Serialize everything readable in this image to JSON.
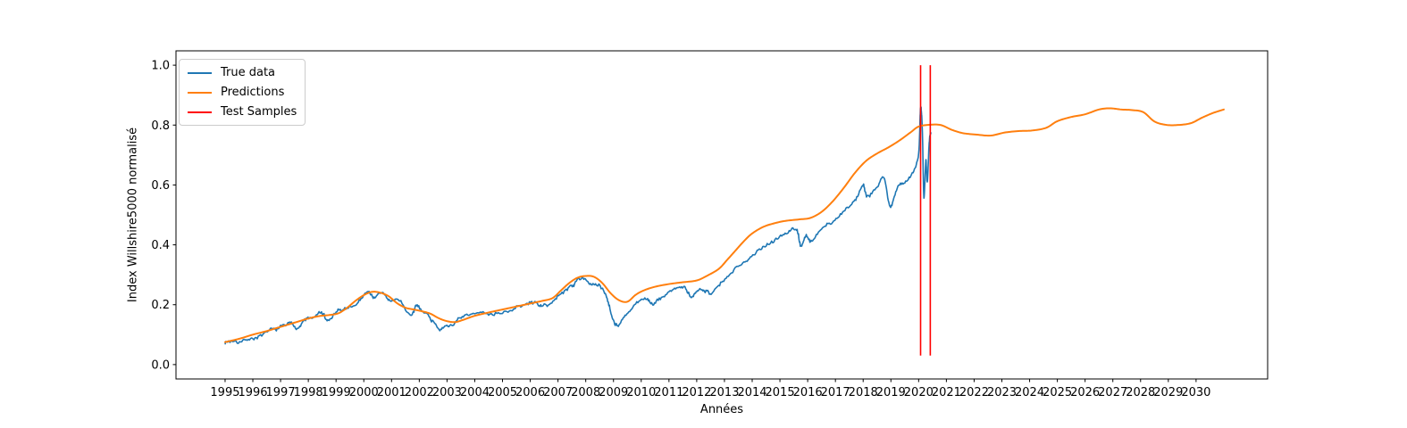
{
  "figure": {
    "background": "#ffffff"
  },
  "chart_data": {
    "type": "line",
    "title": "",
    "xlabel": "Années",
    "ylabel": "Index Willshire5000 normalisé",
    "grid": false,
    "xlim": [
      1993.23,
      2032.58
    ],
    "ylim": [
      -0.048,
      1.048
    ],
    "x_ticks": [
      "1995",
      "1996",
      "1997",
      "1998",
      "1999",
      "2000",
      "2001",
      "2002",
      "2003",
      "2004",
      "2005",
      "2006",
      "2007",
      "2008",
      "2009",
      "2010",
      "2011",
      "2012",
      "2013",
      "2014",
      "2015",
      "2016",
      "2017",
      "2018",
      "2019",
      "2020",
      "2021",
      "2022",
      "2023",
      "2024",
      "2025",
      "2026",
      "2027",
      "2028",
      "2029",
      "2030"
    ],
    "y_ticks": [
      "0.0",
      "0.2",
      "0.4",
      "0.6",
      "0.8",
      "1.0"
    ],
    "legend": {
      "position": "upper-left",
      "entries": [
        {
          "label": "True data",
          "color": "#1f77b4"
        },
        {
          "label": "Predictions",
          "color": "#ff7f0e"
        },
        {
          "label": "Test Samples",
          "color": "#ff0000"
        }
      ]
    },
    "series": [
      {
        "name": "True data",
        "color": "#1f77b4",
        "style": "noisy-line",
        "line_width": 1.6,
        "noise_amplitude": 0.009,
        "points": [
          [
            1995.0,
            0.075
          ],
          [
            1995.4,
            0.082
          ],
          [
            1995.8,
            0.09
          ],
          [
            1996.2,
            0.098
          ],
          [
            1996.6,
            0.107
          ],
          [
            1997.0,
            0.12
          ],
          [
            1997.3,
            0.136
          ],
          [
            1997.6,
            0.128
          ],
          [
            1997.9,
            0.15
          ],
          [
            1998.2,
            0.158
          ],
          [
            1998.5,
            0.17
          ],
          [
            1998.7,
            0.144
          ],
          [
            1999.0,
            0.168
          ],
          [
            1999.4,
            0.183
          ],
          [
            1999.8,
            0.21
          ],
          [
            2000.1,
            0.24
          ],
          [
            2000.4,
            0.228
          ],
          [
            2000.7,
            0.237
          ],
          [
            2001.0,
            0.21
          ],
          [
            2001.3,
            0.212
          ],
          [
            2001.7,
            0.163
          ],
          [
            2001.9,
            0.188
          ],
          [
            2002.2,
            0.178
          ],
          [
            2002.5,
            0.148
          ],
          [
            2002.8,
            0.124
          ],
          [
            2003.1,
            0.132
          ],
          [
            2003.4,
            0.148
          ],
          [
            2003.8,
            0.16
          ],
          [
            2004.3,
            0.166
          ],
          [
            2004.8,
            0.177
          ],
          [
            2005.3,
            0.186
          ],
          [
            2005.8,
            0.197
          ],
          [
            2006.2,
            0.206
          ],
          [
            2006.5,
            0.196
          ],
          [
            2006.9,
            0.216
          ],
          [
            2007.3,
            0.25
          ],
          [
            2007.6,
            0.272
          ],
          [
            2007.9,
            0.292
          ],
          [
            2008.2,
            0.268
          ],
          [
            2008.5,
            0.262
          ],
          [
            2008.75,
            0.232
          ],
          [
            2008.95,
            0.168
          ],
          [
            2009.15,
            0.138
          ],
          [
            2009.45,
            0.163
          ],
          [
            2009.8,
            0.196
          ],
          [
            2010.2,
            0.218
          ],
          [
            2010.45,
            0.2
          ],
          [
            2010.8,
            0.226
          ],
          [
            2011.2,
            0.252
          ],
          [
            2011.55,
            0.258
          ],
          [
            2011.8,
            0.216
          ],
          [
            2012.0,
            0.238
          ],
          [
            2012.25,
            0.258
          ],
          [
            2012.55,
            0.248
          ],
          [
            2012.9,
            0.272
          ],
          [
            2013.3,
            0.305
          ],
          [
            2013.7,
            0.338
          ],
          [
            2014.1,
            0.38
          ],
          [
            2014.5,
            0.404
          ],
          [
            2014.9,
            0.428
          ],
          [
            2015.3,
            0.443
          ],
          [
            2015.6,
            0.452
          ],
          [
            2015.75,
            0.401
          ],
          [
            2015.95,
            0.432
          ],
          [
            2016.15,
            0.406
          ],
          [
            2016.5,
            0.456
          ],
          [
            2016.9,
            0.482
          ],
          [
            2017.3,
            0.512
          ],
          [
            2017.7,
            0.548
          ],
          [
            2018.0,
            0.602
          ],
          [
            2018.12,
            0.566
          ],
          [
            2018.45,
            0.592
          ],
          [
            2018.75,
            0.63
          ],
          [
            2018.97,
            0.528
          ],
          [
            2019.2,
            0.582
          ],
          [
            2019.5,
            0.613
          ],
          [
            2019.8,
            0.64
          ],
          [
            2020.0,
            0.7
          ],
          [
            2020.07,
            0.855
          ],
          [
            2020.13,
            0.79
          ],
          [
            2020.19,
            0.565
          ],
          [
            2020.26,
            0.69
          ],
          [
            2020.31,
            0.618
          ],
          [
            2020.38,
            0.748
          ],
          [
            2020.44,
            0.772
          ]
        ]
      },
      {
        "name": "Predictions",
        "color": "#ff7f0e",
        "style": "smooth-line",
        "line_width": 2.0,
        "points": [
          [
            1995.0,
            0.075
          ],
          [
            1995.5,
            0.086
          ],
          [
            1996.0,
            0.1
          ],
          [
            1996.5,
            0.112
          ],
          [
            1997.0,
            0.126
          ],
          [
            1997.5,
            0.14
          ],
          [
            1998.0,
            0.154
          ],
          [
            1998.4,
            0.162
          ],
          [
            1998.8,
            0.166
          ],
          [
            1999.1,
            0.172
          ],
          [
            1999.4,
            0.19
          ],
          [
            1999.7,
            0.213
          ],
          [
            2000.0,
            0.232
          ],
          [
            2000.3,
            0.243
          ],
          [
            2000.6,
            0.24
          ],
          [
            2000.9,
            0.228
          ],
          [
            2001.2,
            0.205
          ],
          [
            2001.5,
            0.19
          ],
          [
            2001.8,
            0.184
          ],
          [
            2002.1,
            0.178
          ],
          [
            2002.4,
            0.17
          ],
          [
            2002.7,
            0.155
          ],
          [
            2003.0,
            0.145
          ],
          [
            2003.3,
            0.142
          ],
          [
            2003.6,
            0.15
          ],
          [
            2004.0,
            0.163
          ],
          [
            2004.5,
            0.174
          ],
          [
            2005.0,
            0.184
          ],
          [
            2005.5,
            0.194
          ],
          [
            2006.0,
            0.204
          ],
          [
            2006.4,
            0.212
          ],
          [
            2006.8,
            0.222
          ],
          [
            2007.1,
            0.247
          ],
          [
            2007.4,
            0.272
          ],
          [
            2007.7,
            0.29
          ],
          [
            2008.0,
            0.296
          ],
          [
            2008.3,
            0.293
          ],
          [
            2008.6,
            0.272
          ],
          [
            2008.9,
            0.238
          ],
          [
            2009.2,
            0.215
          ],
          [
            2009.5,
            0.21
          ],
          [
            2009.8,
            0.233
          ],
          [
            2010.1,
            0.248
          ],
          [
            2010.5,
            0.26
          ],
          [
            2011.0,
            0.269
          ],
          [
            2011.5,
            0.275
          ],
          [
            2012.0,
            0.281
          ],
          [
            2012.4,
            0.298
          ],
          [
            2012.8,
            0.32
          ],
          [
            2013.1,
            0.35
          ],
          [
            2013.4,
            0.381
          ],
          [
            2013.7,
            0.412
          ],
          [
            2014.0,
            0.438
          ],
          [
            2014.4,
            0.46
          ],
          [
            2014.8,
            0.472
          ],
          [
            2015.2,
            0.48
          ],
          [
            2015.7,
            0.485
          ],
          [
            2016.1,
            0.49
          ],
          [
            2016.5,
            0.51
          ],
          [
            2016.9,
            0.545
          ],
          [
            2017.3,
            0.59
          ],
          [
            2017.7,
            0.64
          ],
          [
            2018.1,
            0.68
          ],
          [
            2018.5,
            0.705
          ],
          [
            2018.9,
            0.725
          ],
          [
            2019.3,
            0.748
          ],
          [
            2019.7,
            0.775
          ],
          [
            2020.0,
            0.795
          ],
          [
            2020.4,
            0.801
          ],
          [
            2020.8,
            0.8
          ],
          [
            2021.2,
            0.784
          ],
          [
            2021.6,
            0.773
          ],
          [
            2022.1,
            0.768
          ],
          [
            2022.6,
            0.765
          ],
          [
            2023.1,
            0.775
          ],
          [
            2023.6,
            0.78
          ],
          [
            2024.1,
            0.782
          ],
          [
            2024.6,
            0.791
          ],
          [
            2025.0,
            0.813
          ],
          [
            2025.5,
            0.827
          ],
          [
            2026.0,
            0.836
          ],
          [
            2026.5,
            0.852
          ],
          [
            2026.9,
            0.856
          ],
          [
            2027.3,
            0.852
          ],
          [
            2027.7,
            0.85
          ],
          [
            2028.1,
            0.843
          ],
          [
            2028.5,
            0.812
          ],
          [
            2028.9,
            0.801
          ],
          [
            2029.3,
            0.8
          ],
          [
            2029.8,
            0.806
          ],
          [
            2030.2,
            0.824
          ],
          [
            2030.6,
            0.84
          ],
          [
            2031.0,
            0.852
          ]
        ]
      },
      {
        "name": "Test Samples",
        "color": "#ff0000",
        "style": "vlines",
        "line_width": 1.6,
        "x": [
          2020.07,
          2020.42
        ],
        "y_span": [
          0.03,
          1.0
        ]
      }
    ]
  }
}
